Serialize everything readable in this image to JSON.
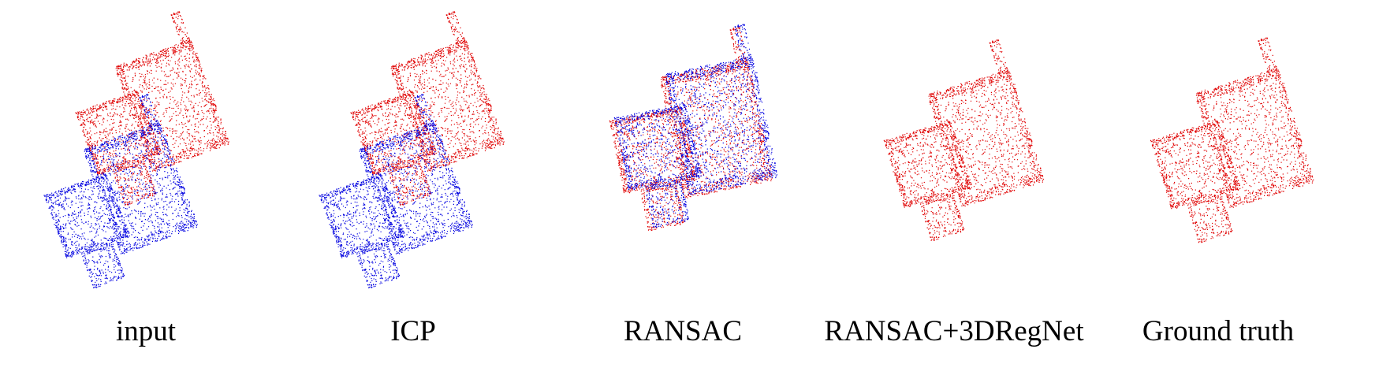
{
  "colors": {
    "source": "#e00000",
    "target": "#0000e0"
  },
  "panels": [
    {
      "label": "input"
    },
    {
      "label": "ICP"
    },
    {
      "label": "RANSAC"
    },
    {
      "label": "RANSAC+3DRegNet"
    },
    {
      "label": "Ground truth"
    }
  ]
}
